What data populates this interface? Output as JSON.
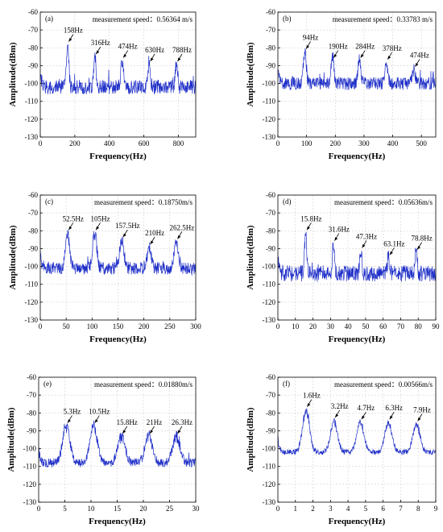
{
  "chart_data": [
    {
      "type": "line",
      "panel_label": "(a)",
      "speed_label": "measurement speed：0.56364 m/s",
      "xlabel": "Frequency(Hz)",
      "ylabel": "Amplitude(dBm)",
      "xlim": [
        0,
        900
      ],
      "ylim": [
        -130,
        -60
      ],
      "xticks": [
        0,
        200,
        400,
        600,
        800
      ],
      "yticks": [
        -130,
        -120,
        -110,
        -100,
        -90,
        -80,
        -70,
        -60
      ],
      "grid": true,
      "baseline": -102,
      "noise": 4,
      "peak_width": 7,
      "peaks": [
        {
          "x": 158,
          "y": -77,
          "label": "158Hz"
        },
        {
          "x": 316,
          "y": -84,
          "label": "316Hz"
        },
        {
          "x": 474,
          "y": -86,
          "label": "474Hz"
        },
        {
          "x": 630,
          "y": -88,
          "label": "630Hz"
        },
        {
          "x": 788,
          "y": -88,
          "label": "788Hz"
        }
      ]
    },
    {
      "type": "line",
      "panel_label": "(b)",
      "speed_label": "measurement speed：0.33783 m/s",
      "xlabel": "Frequency(Hz)",
      "ylabel": "Amplitude(dBm)",
      "xlim": [
        0,
        550
      ],
      "ylim": [
        -130,
        -60
      ],
      "xticks": [
        0,
        100,
        200,
        300,
        400,
        500
      ],
      "yticks": [
        -130,
        -120,
        -110,
        -100,
        -90,
        -80,
        -70,
        -60
      ],
      "grid": true,
      "baseline": -100,
      "noise": 3.5,
      "peak_width": 5,
      "peaks": [
        {
          "x": 94,
          "y": -81,
          "label": "94Hz"
        },
        {
          "x": 190,
          "y": -86,
          "label": "190Hz"
        },
        {
          "x": 284,
          "y": -86,
          "label": "284Hz"
        },
        {
          "x": 378,
          "y": -87,
          "label": "378Hz"
        },
        {
          "x": 474,
          "y": -91,
          "label": "474Hz"
        }
      ]
    },
    {
      "type": "line",
      "panel_label": "(c)",
      "speed_label": "measurement speed：0.18750m/s",
      "xlabel": "Frequency(Hz)",
      "ylabel": "Amplitude(dBm)",
      "xlim": [
        0,
        300
      ],
      "ylim": [
        -130,
        -60
      ],
      "xticks": [
        0,
        50,
        100,
        150,
        200,
        250,
        300
      ],
      "yticks": [
        -130,
        -120,
        -110,
        -100,
        -90,
        -80,
        -70,
        -60
      ],
      "grid": true,
      "baseline": -101,
      "noise": 3.5,
      "peak_width": 4,
      "peaks": [
        {
          "x": 52.5,
          "y": -80,
          "label": "52.5Hz"
        },
        {
          "x": 105,
          "y": -80,
          "label": "105Hz"
        },
        {
          "x": 157.5,
          "y": -84,
          "label": "157.5Hz"
        },
        {
          "x": 210,
          "y": -88,
          "label": "210Hz"
        },
        {
          "x": 262.5,
          "y": -85,
          "label": "262.5Hz"
        }
      ]
    },
    {
      "type": "line",
      "panel_label": "(d)",
      "speed_label": "measurement speed：0.05636m/s",
      "xlabel": "Frequency(Hz)",
      "ylabel": "Amplitude(dBm)",
      "xlim": [
        0,
        90
      ],
      "ylim": [
        -130,
        -60
      ],
      "xticks": [
        0,
        10,
        20,
        30,
        40,
        50,
        60,
        70,
        80,
        90
      ],
      "yticks": [
        -130,
        -120,
        -110,
        -100,
        -90,
        -80,
        -70,
        -60
      ],
      "grid": true,
      "baseline": -104,
      "noise": 4.5,
      "peak_width": 0.6,
      "peaks": [
        {
          "x": 15.8,
          "y": -80,
          "label": "15.8Hz"
        },
        {
          "x": 31.6,
          "y": -86,
          "label": "31.6Hz"
        },
        {
          "x": 47.3,
          "y": -90,
          "label": "47.3Hz"
        },
        {
          "x": 63.1,
          "y": -94,
          "label": "63.1Hz"
        },
        {
          "x": 78.8,
          "y": -91,
          "label": "78.8Hz"
        }
      ]
    },
    {
      "type": "line",
      "panel_label": "(e)",
      "speed_label": "measurement speed：0.01880m/s",
      "xlabel": "Frequency(Hz)",
      "ylabel": "Amplitude(dBm)",
      "xlim": [
        0,
        30
      ],
      "ylim": [
        -130,
        -60
      ],
      "xticks": [
        0,
        5,
        10,
        15,
        20,
        25,
        30
      ],
      "yticks": [
        -130,
        -120,
        -110,
        -100,
        -90,
        -80,
        -70,
        -60
      ],
      "grid": true,
      "baseline": -108,
      "noise": 2.5,
      "peak_width": 0.7,
      "peaks": [
        {
          "x": 5.3,
          "y": -86,
          "label": "5.3Hz"
        },
        {
          "x": 10.5,
          "y": -86,
          "label": "10.5Hz"
        },
        {
          "x": 15.8,
          "y": -92,
          "label": "15.8Hz"
        },
        {
          "x": 21,
          "y": -92,
          "label": "21Hz"
        },
        {
          "x": 26.3,
          "y": -92,
          "label": "26.3Hz"
        }
      ]
    },
    {
      "type": "line",
      "panel_label": "(f)",
      "speed_label": "measurement speed：0.00566m/s",
      "xlabel": "Frequency(Hz)",
      "ylabel": "Amplitude(dBm)",
      "xlim": [
        0,
        9
      ],
      "ylim": [
        -130,
        -60
      ],
      "xticks": [
        0,
        1,
        2,
        3,
        4,
        5,
        6,
        7,
        8,
        9
      ],
      "yticks": [
        -130,
        -120,
        -110,
        -100,
        -90,
        -80,
        -70,
        -60
      ],
      "grid": true,
      "baseline": -102,
      "noise": 1.5,
      "peak_width": 0.2,
      "peaks": [
        {
          "x": 1.6,
          "y": -77,
          "label": "1.6Hz"
        },
        {
          "x": 3.2,
          "y": -83,
          "label": "3.2Hz"
        },
        {
          "x": 4.7,
          "y": -84,
          "label": "4.7Hz"
        },
        {
          "x": 6.3,
          "y": -84,
          "label": "6.3Hz"
        },
        {
          "x": 7.9,
          "y": -85,
          "label": "7.9Hz"
        }
      ]
    }
  ]
}
